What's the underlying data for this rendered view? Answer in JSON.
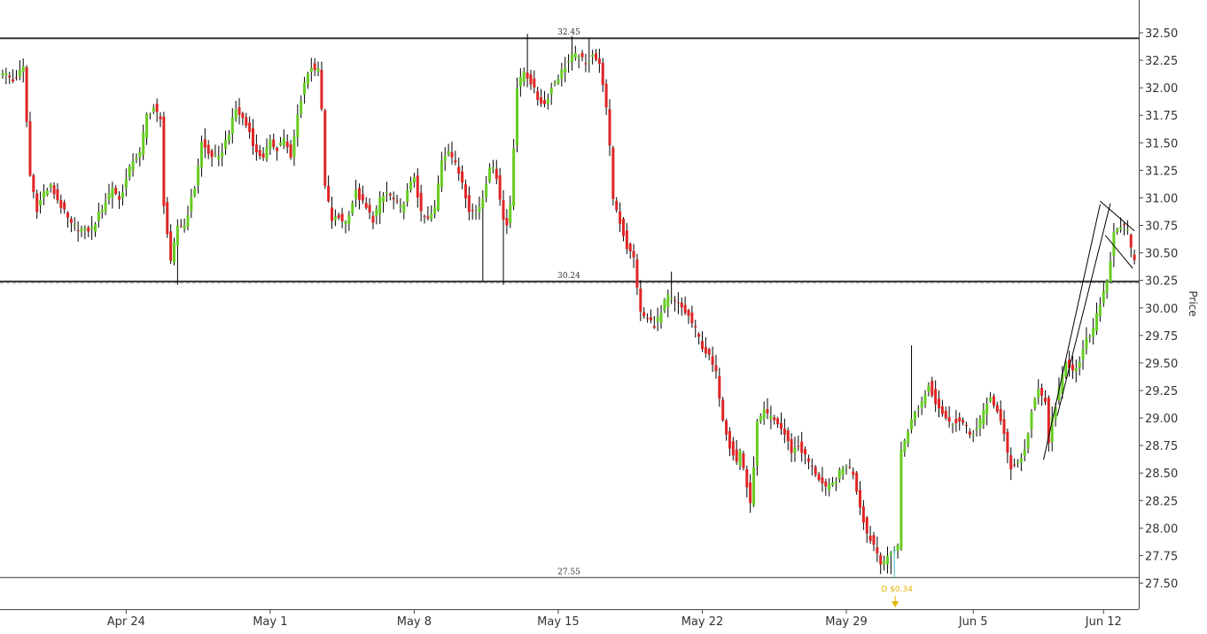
{
  "chart_data": {
    "type": "candlestick",
    "ylabel": "Price",
    "ylim": [
      27.35,
      32.8
    ],
    "y_ticks": [
      "27.50",
      "27.75",
      "28.00",
      "28.25",
      "28.50",
      "28.75",
      "29.00",
      "29.25",
      "29.50",
      "29.75",
      "30.00",
      "30.25",
      "30.50",
      "30.75",
      "31.00",
      "31.25",
      "31.50",
      "31.75",
      "32.00",
      "32.25",
      "32.50"
    ],
    "x_ticks": [
      {
        "label": "Apr 24",
        "bar": 36
      },
      {
        "label": "May 1",
        "bar": 78
      },
      {
        "label": "May 8",
        "bar": 120
      },
      {
        "label": "May 15",
        "bar": 162
      },
      {
        "label": "May 22",
        "bar": 204
      },
      {
        "label": "May 29",
        "bar": 246
      },
      {
        "label": "Jun 5",
        "bar": 283
      },
      {
        "label": "Jun 12",
        "bar": 321
      }
    ],
    "levels": [
      {
        "value": 32.45,
        "label": "32.45",
        "color": "#333333",
        "width": 2
      },
      {
        "value": 30.24,
        "label": "30.24",
        "color": "#333333",
        "width": 2
      },
      {
        "value": 27.55,
        "label": "27.55",
        "color": "#333333",
        "width": 1
      }
    ],
    "last_price": 30.23,
    "dividend": {
      "label": "D $0.34",
      "bar": 260,
      "value": 27.55
    },
    "colors": {
      "up": "#66cc22",
      "down": "#e02424",
      "wick": "#000000",
      "dividend": "#e6b400",
      "dividend_line": "#3ab8c6"
    },
    "trendlines": [
      {
        "x1": 303.5,
        "y1": 28.62,
        "x2": 320,
        "y2": 30.94
      },
      {
        "x1": 307.5,
        "y1": 29.02,
        "x2": 323,
        "y2": 30.95
      },
      {
        "x1": 320,
        "y1": 30.97,
        "x2": 330,
        "y2": 30.7
      },
      {
        "x1": 321.5,
        "y1": 30.66,
        "x2": 329.5,
        "y2": 30.36
      }
    ],
    "anchors": [
      [
        0,
        32.15
      ],
      [
        3,
        32.06
      ],
      [
        6,
        32.18
      ],
      [
        8,
        31.2
      ],
      [
        10,
        30.9
      ],
      [
        12,
        31.05
      ],
      [
        14,
        31.1
      ],
      [
        20,
        30.75
      ],
      [
        24,
        30.7
      ],
      [
        26,
        30.72
      ],
      [
        28,
        30.85
      ],
      [
        32,
        31.1
      ],
      [
        34,
        30.98
      ],
      [
        38,
        31.35
      ],
      [
        40,
        31.4
      ],
      [
        42,
        31.75
      ],
      [
        44,
        31.82
      ],
      [
        46,
        31.7
      ],
      [
        47,
        30.95
      ],
      [
        49,
        30.4
      ],
      [
        51,
        30.75
      ],
      [
        53,
        30.75
      ],
      [
        56,
        31.1
      ],
      [
        58,
        31.5
      ],
      [
        60,
        31.4
      ],
      [
        63,
        31.35
      ],
      [
        66,
        31.6
      ],
      [
        68,
        31.8
      ],
      [
        70,
        31.72
      ],
      [
        72,
        31.6
      ],
      [
        74,
        31.4
      ],
      [
        76,
        31.38
      ],
      [
        78,
        31.5
      ],
      [
        80,
        31.45
      ],
      [
        82,
        31.55
      ],
      [
        84,
        31.35
      ],
      [
        86,
        31.75
      ],
      [
        88,
        32.05
      ],
      [
        90,
        32.2
      ],
      [
        92,
        32.15
      ],
      [
        93,
        31.8
      ],
      [
        94,
        31.1
      ],
      [
        96,
        30.8
      ],
      [
        98,
        30.82
      ],
      [
        100,
        30.78
      ],
      [
        103,
        31.05
      ],
      [
        106,
        30.9
      ],
      [
        108,
        30.8
      ],
      [
        110,
        30.98
      ],
      [
        112,
        31.05
      ],
      [
        114,
        30.98
      ],
      [
        116,
        30.9
      ],
      [
        118,
        31.05
      ],
      [
        120,
        31.2
      ],
      [
        122,
        30.85
      ],
      [
        124,
        30.8
      ],
      [
        126,
        30.9
      ],
      [
        128,
        31.35
      ],
      [
        130,
        31.45
      ],
      [
        132,
        31.3
      ],
      [
        134,
        31.15
      ],
      [
        136,
        30.9
      ],
      [
        138,
        30.85
      ],
      [
        140,
        31.0
      ],
      [
        142,
        31.3
      ],
      [
        144,
        31.2
      ],
      [
        146,
        30.8
      ],
      [
        147,
        30.75
      ],
      [
        148,
        30.95
      ],
      [
        150,
        32.0
      ],
      [
        152,
        32.15
      ],
      [
        154,
        32.05
      ],
      [
        156,
        31.9
      ],
      [
        158,
        31.85
      ],
      [
        160,
        32.0
      ],
      [
        162,
        32.1
      ],
      [
        164,
        32.2
      ],
      [
        166,
        32.28
      ],
      [
        168,
        32.3
      ],
      [
        170,
        32.2
      ],
      [
        172,
        32.32
      ],
      [
        174,
        32.2
      ],
      [
        175,
        32.05
      ],
      [
        176,
        31.8
      ],
      [
        177,
        31.45
      ],
      [
        178,
        31.0
      ],
      [
        180,
        30.78
      ],
      [
        182,
        30.55
      ],
      [
        184,
        30.45
      ],
      [
        185,
        30.2
      ],
      [
        186,
        29.95
      ],
      [
        188,
        29.9
      ],
      [
        190,
        29.85
      ],
      [
        192,
        29.95
      ],
      [
        193,
        30.05
      ],
      [
        194,
        30.1
      ],
      [
        196,
        30.05
      ],
      [
        198,
        30.0
      ],
      [
        200,
        29.92
      ],
      [
        202,
        29.8
      ],
      [
        204,
        29.65
      ],
      [
        206,
        29.55
      ],
      [
        208,
        29.4
      ],
      [
        209,
        29.2
      ],
      [
        210,
        29.0
      ],
      [
        212,
        28.75
      ],
      [
        214,
        28.6
      ],
      [
        215,
        28.7
      ],
      [
        216,
        28.55
      ],
      [
        218,
        28.2
      ],
      [
        220,
        28.95
      ],
      [
        222,
        29.05
      ],
      [
        224,
        29.0
      ],
      [
        226,
        28.95
      ],
      [
        228,
        28.85
      ],
      [
        230,
        28.7
      ],
      [
        232,
        28.75
      ],
      [
        234,
        28.65
      ],
      [
        236,
        28.55
      ],
      [
        238,
        28.45
      ],
      [
        240,
        28.35
      ],
      [
        242,
        28.4
      ],
      [
        244,
        28.5
      ],
      [
        246,
        28.58
      ],
      [
        248,
        28.5
      ],
      [
        250,
        28.2
      ],
      [
        252,
        27.95
      ],
      [
        254,
        27.85
      ],
      [
        256,
        27.7
      ],
      [
        258,
        27.72
      ],
      [
        260,
        27.82
      ],
      [
        261,
        27.85
      ],
      [
        262,
        28.7
      ],
      [
        264,
        28.9
      ],
      [
        266,
        29.05
      ],
      [
        268,
        29.15
      ],
      [
        270,
        29.3
      ],
      [
        272,
        29.15
      ],
      [
        274,
        29.05
      ],
      [
        276,
        28.95
      ],
      [
        278,
        28.98
      ],
      [
        280,
        28.95
      ],
      [
        282,
        28.85
      ],
      [
        284,
        28.9
      ],
      [
        286,
        29.05
      ],
      [
        288,
        29.2
      ],
      [
        290,
        29.05
      ],
      [
        292,
        28.85
      ],
      [
        294,
        28.55
      ],
      [
        296,
        28.6
      ],
      [
        298,
        28.7
      ],
      [
        300,
        29.05
      ],
      [
        302,
        29.25
      ],
      [
        304,
        29.15
      ],
      [
        305,
        28.75
      ],
      [
        306,
        29.0
      ],
      [
        308,
        29.25
      ],
      [
        310,
        29.5
      ],
      [
        312,
        29.45
      ],
      [
        314,
        29.5
      ],
      [
        316,
        29.7
      ],
      [
        318,
        29.8
      ],
      [
        320,
        30.05
      ],
      [
        322,
        30.25
      ],
      [
        323,
        30.45
      ],
      [
        324,
        30.7
      ],
      [
        326,
        30.75
      ],
      [
        328,
        30.7
      ],
      [
        329,
        30.52
      ],
      [
        330,
        30.45
      ]
    ],
    "wick_overrides": [
      {
        "bar": 51,
        "low": 30.21
      },
      {
        "bar": 140,
        "low": 30.24
      },
      {
        "bar": 146,
        "low": 30.21
      },
      {
        "bar": 153,
        "high": 32.49
      },
      {
        "bar": 166,
        "high": 32.47
      },
      {
        "bar": 171,
        "high": 32.45
      },
      {
        "bar": 195,
        "high": 30.33
      },
      {
        "bar": 265,
        "high": 29.66
      },
      {
        "bar": 259,
        "low": 27.58
      }
    ]
  }
}
